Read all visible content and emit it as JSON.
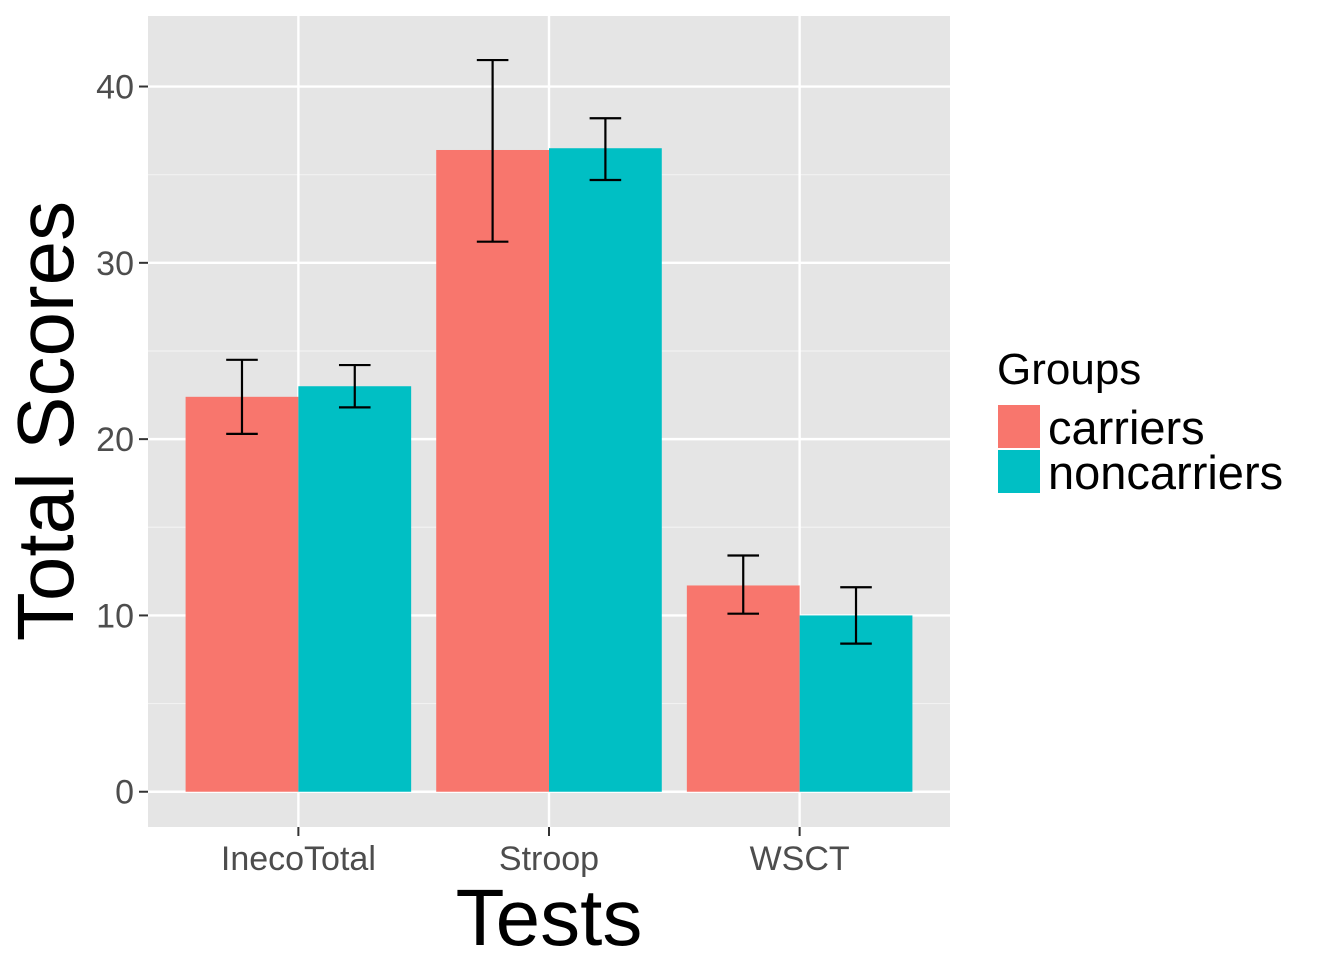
{
  "chart_data": {
    "type": "bar",
    "title": "",
    "xlabel": "Tests",
    "ylabel": "Total Scores",
    "categories": [
      "InecoTotal",
      "Stroop",
      "WSCT"
    ],
    "series": [
      {
        "name": "carriers",
        "color": "#F8766D",
        "values": [
          22.4,
          36.4,
          11.7
        ],
        "error_low": [
          20.3,
          31.2,
          10.1
        ],
        "error_high": [
          24.5,
          41.5,
          13.4
        ]
      },
      {
        "name": "noncarriers",
        "color": "#00BFC4",
        "values": [
          23.0,
          36.5,
          10.0
        ],
        "error_low": [
          21.8,
          34.7,
          8.4
        ],
        "error_high": [
          24.2,
          38.2,
          11.6
        ]
      }
    ],
    "ylim": [
      -2,
      44
    ],
    "yticks": [
      0,
      10,
      20,
      30,
      40
    ],
    "ytick_labels": [
      "0",
      "10",
      "20",
      "30",
      "40"
    ],
    "grid": true,
    "panel_background": "#E5E5E5",
    "legend": {
      "title": "Groups",
      "position": "right",
      "items": [
        "carriers",
        "noncarriers"
      ]
    }
  }
}
